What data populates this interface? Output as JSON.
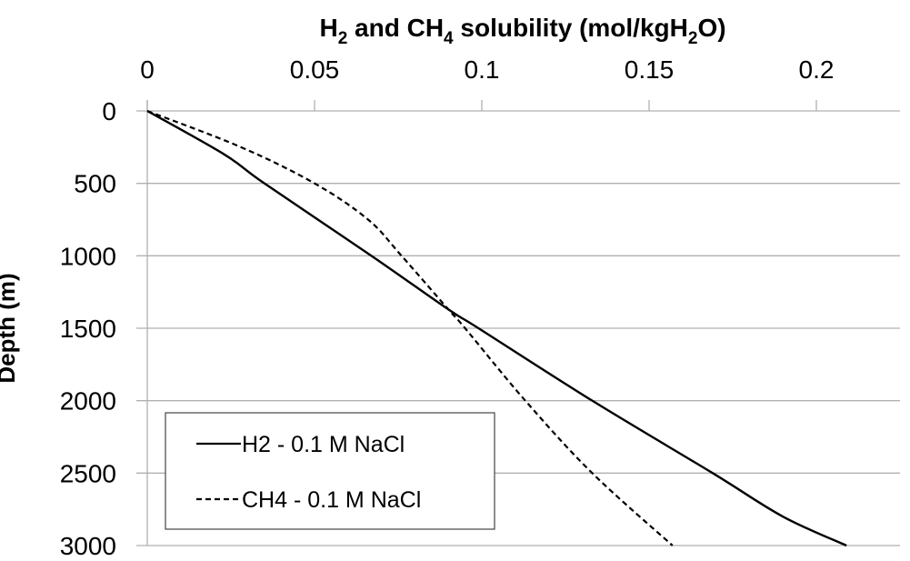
{
  "chart_data": {
    "type": "line",
    "title": "",
    "xlabel": "H2 and CH4 solubility (mol/kgH2O)",
    "xlabel_parts": {
      "p1": "H",
      "s1": "2",
      "p2": " and CH",
      "s2": "4",
      "p3": " solubility (mol/kgH",
      "s3": "2",
      "p4": "O)"
    },
    "ylabel": "Depth (m)",
    "x_axis_position": "top",
    "y_axis_inverted": true,
    "xlim": [
      0,
      0.21
    ],
    "ylim": [
      0,
      3000
    ],
    "xticks": [
      "0",
      "0.05",
      "0.1",
      "0.15",
      "0.2"
    ],
    "yticks": [
      "0",
      "500",
      "1000",
      "1500",
      "2000",
      "2500",
      "3000"
    ],
    "grid": {
      "horizontal": true,
      "vertical": false
    },
    "legend_position": "lower-left",
    "series": [
      {
        "name": "H2 - 0.1 M NaCl",
        "style": "solid",
        "depth": [
          0,
          300,
          500,
          1000,
          1370,
          1500,
          2000,
          2500,
          2800,
          3000
        ],
        "values": [
          0,
          0.023,
          0.035,
          0.067,
          0.09,
          0.099,
          0.133,
          0.169,
          0.19,
          0.209
        ]
      },
      {
        "name": "CH4 - 0.1 M NaCl",
        "style": "dashed",
        "depth": [
          0,
          250,
          500,
          750,
          1000,
          1370,
          1500,
          2000,
          2500,
          3000
        ],
        "values": [
          0,
          0.028,
          0.05,
          0.066,
          0.076,
          0.09,
          0.095,
          0.113,
          0.133,
          0.157
        ]
      }
    ]
  },
  "legend": {
    "items": [
      "H2 - 0.1 M NaCl",
      "CH4 - 0.1 M NaCl"
    ]
  }
}
